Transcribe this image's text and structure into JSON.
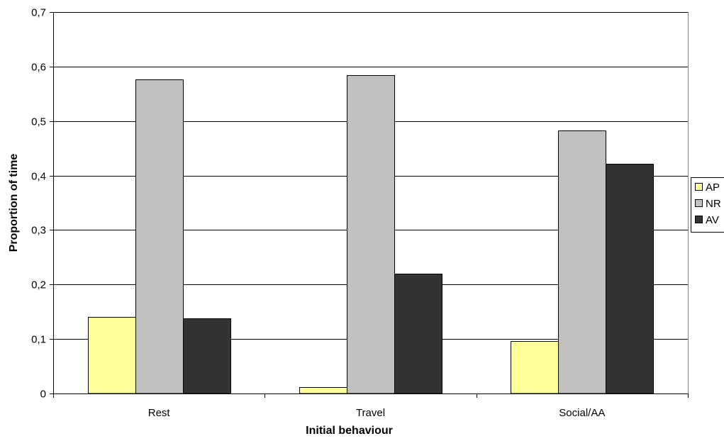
{
  "chart_data": {
    "type": "bar",
    "categories": [
      "Rest",
      "Travel",
      "Social/AA"
    ],
    "series": [
      {
        "name": "AP",
        "values": [
          0.141,
          0.012,
          0.096
        ],
        "color": "#FFFF99"
      },
      {
        "name": "NR",
        "values": [
          0.577,
          0.584,
          0.483
        ],
        "color": "#C0C0C0"
      },
      {
        "name": "AV",
        "values": [
          0.138,
          0.22,
          0.421
        ],
        "color": "#333333"
      }
    ],
    "xlabel": "Initial behaviour",
    "ylabel": "Proportion of time",
    "ylim": [
      0,
      0.7
    ],
    "yticks": [
      0,
      0.1,
      0.2,
      0.3,
      0.4,
      0.5,
      0.6,
      0.7
    ],
    "ytick_labels": [
      "0",
      "0,1",
      "0,2",
      "0,3",
      "0,4",
      "0,5",
      "0,6",
      "0,7"
    ],
    "grid": true,
    "legend_position": "right"
  }
}
